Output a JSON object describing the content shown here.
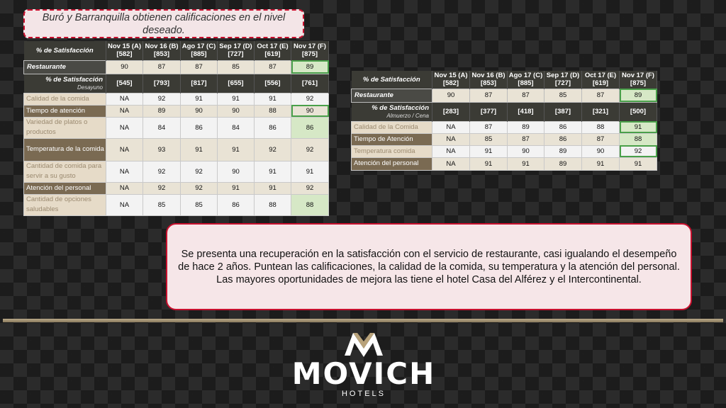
{
  "title": "Buró y Barranquilla obtienen calificaciones en el nivel deseado.",
  "periods": [
    "Nov 15 (A)[582]",
    "Nov 16 (B)[853]",
    "Ago 17 (C)[885]",
    "Sep 17 (D)[727]",
    "Oct 17 (E)[619]",
    "Nov 17 (F)[875]"
  ],
  "left": {
    "header_label": "% de Satisfacción",
    "restaurante": {
      "label": "Restaurante",
      "values": [
        "90",
        "87",
        "87",
        "85",
        "87",
        "89"
      ]
    },
    "sub": {
      "label": "% de Satisfacción",
      "sublabel": "Desayuno",
      "values": [
        "[545]",
        "[793]",
        "[817]",
        "[655]",
        "[556]",
        "[761]"
      ]
    },
    "rows": [
      {
        "label": "Calidad de la comida",
        "values": [
          "NA",
          "92",
          "91",
          "91",
          "91",
          "92"
        ]
      },
      {
        "label": "Tiempo de atención",
        "values": [
          "NA",
          "89",
          "90",
          "90",
          "88",
          "90"
        ]
      },
      {
        "label": "Variedad de platos o productos",
        "values": [
          "NA",
          "84",
          "86",
          "84",
          "86",
          "86"
        ]
      },
      {
        "label": "Temperatura de la comida",
        "values": [
          "NA",
          "93",
          "91",
          "91",
          "92",
          "92"
        ]
      },
      {
        "label": "Cantidad de comida para servir a su gusto",
        "values": [
          "NA",
          "92",
          "92",
          "90",
          "91",
          "91"
        ]
      },
      {
        "label": "Atención del personal",
        "values": [
          "NA",
          "92",
          "92",
          "91",
          "91",
          "92"
        ]
      },
      {
        "label": "Cantidad de opciones saludables",
        "values": [
          "NA",
          "85",
          "85",
          "86",
          "88",
          "88"
        ]
      }
    ]
  },
  "right": {
    "header_label": "% de Satisfacción",
    "restaurante": {
      "label": "Restaurante",
      "values": [
        "90",
        "87",
        "87",
        "85",
        "87",
        "89"
      ]
    },
    "sub": {
      "label": "% de Satisfacción",
      "sublabel": "Almuerzo / Cena",
      "values": [
        "[283]",
        "[377]",
        "[418]",
        "[387]",
        "[321]",
        "[500]"
      ]
    },
    "rows": [
      {
        "label": "Calidad de la Comida",
        "values": [
          "NA",
          "87",
          "89",
          "86",
          "88",
          "91"
        ]
      },
      {
        "label": "Tiempo de Atención",
        "values": [
          "NA",
          "85",
          "87",
          "86",
          "87",
          "88"
        ]
      },
      {
        "label": "Temperatura comida",
        "values": [
          "NA",
          "91",
          "90",
          "89",
          "90",
          "92"
        ]
      },
      {
        "label": "Atención del personal",
        "values": [
          "NA",
          "91",
          "91",
          "89",
          "91",
          "91"
        ]
      }
    ]
  },
  "note": "Se presenta una recuperación en la satisfacción con el servicio de restaurante, casi  igualando el desempeño de hace 2 años. Puntean las calificaciones, la calidad de la comida, su temperatura y la atención del personal.  Las mayores oportunidades de mejora las tiene el hotel Casa del Alférez y el Intercontinental.",
  "logo": {
    "brand": "MOVICH",
    "sub": "HOTELS"
  }
}
